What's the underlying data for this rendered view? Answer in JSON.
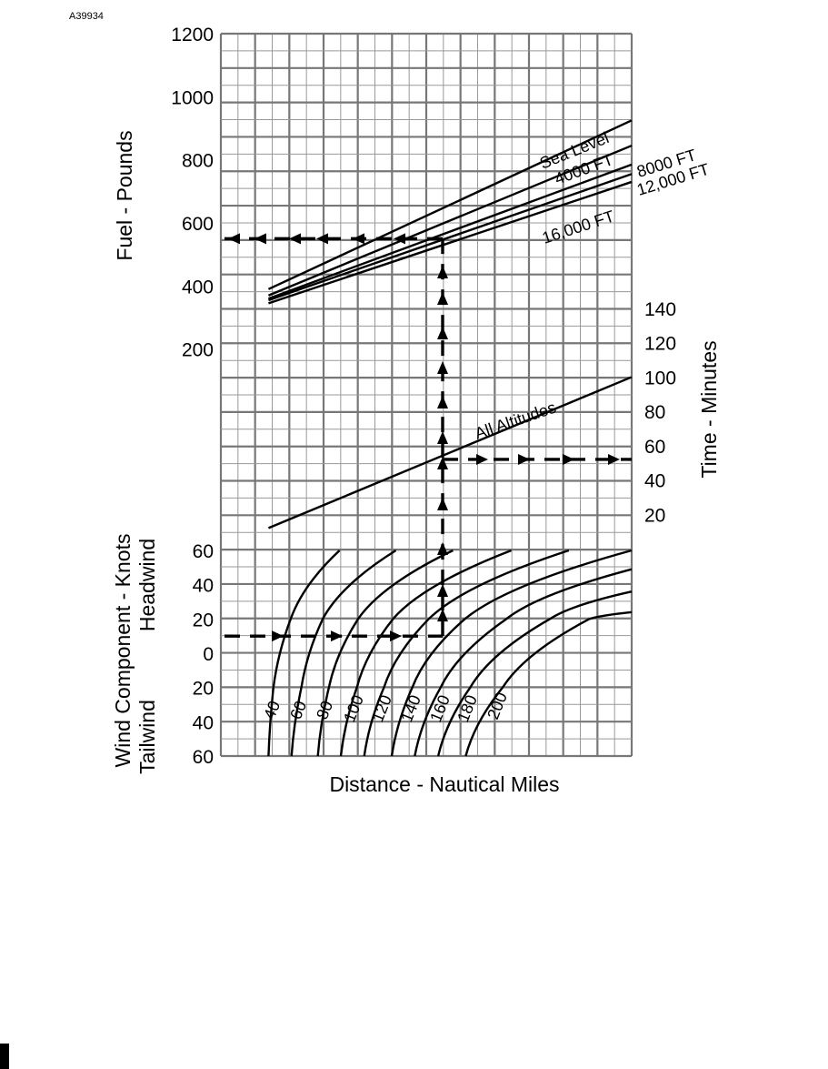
{
  "figure_id": "A39934",
  "chart_data": {
    "type": "line",
    "panels": [
      {
        "name": "fuel",
        "ylabel": "Fuel - Pounds",
        "yticks": [
          200,
          400,
          600,
          800,
          1000,
          1200
        ],
        "ylim": [
          0,
          1200
        ],
        "xlabel": "",
        "series": [
          {
            "name": "Sea Level",
            "x": [
              0,
              1
            ],
            "y": [
              390,
              925
            ]
          },
          {
            "name": "4000 FT",
            "x": [
              0,
              1
            ],
            "y": [
              370,
              845
            ]
          },
          {
            "name": "8000 FT",
            "x": [
              0,
              1
            ],
            "y": [
              360,
              785
            ]
          },
          {
            "name": "12,000 FT",
            "x": [
              0,
              1
            ],
            "y": [
              355,
              755
            ]
          },
          {
            "name": "16,000 FT",
            "x": [
              0,
              1
            ],
            "y": [
              345,
              730
            ]
          }
        ]
      },
      {
        "name": "time",
        "ylabel": "Time - Minutes",
        "yticks": [
          20,
          40,
          60,
          80,
          100,
          120,
          140
        ],
        "ylim": [
          0,
          140
        ],
        "series": [
          {
            "name": "All Altitudes",
            "x": [
              0,
              1
            ],
            "y": [
              12,
              100
            ]
          }
        ]
      },
      {
        "name": "wind",
        "ylabel": "Wind Component - Knots",
        "ylabel_upper": "Headwind",
        "ylabel_lower": "Tailwind",
        "yticks": [
          60,
          40,
          20,
          0,
          20,
          40,
          60
        ],
        "ylim": [
          -60,
          60
        ],
        "xlabel": "Distance - Nautical Miles",
        "series": [
          {
            "name": "40",
            "x": [
              0.116,
              0.128,
              0.17,
              0.289
            ],
            "y": [
              -60,
              -20,
              20,
              60
            ]
          },
          {
            "name": "60",
            "x": [
              0.172,
              0.196,
              0.248,
              0.426
            ],
            "y": [
              -60,
              -20,
              20,
              60
            ]
          },
          {
            "name": "80",
            "x": [
              0.236,
              0.263,
              0.334,
              0.565
            ],
            "y": [
              -60,
              -20,
              20,
              60
            ]
          },
          {
            "name": "100",
            "x": [
              0.292,
              0.331,
              0.419,
              0.707
            ],
            "y": [
              -60,
              -20,
              20,
              60
            ]
          },
          {
            "name": "120",
            "x": [
              0.349,
              0.397,
              0.506,
              0.847
            ],
            "y": [
              -60,
              -20,
              20,
              60
            ]
          },
          {
            "name": "140",
            "x": [
              0.416,
              0.466,
              0.594,
              1.0
            ],
            "y": [
              -60,
              -20,
              20,
              60
            ]
          },
          {
            "name": "160",
            "x": [
              0.472,
              0.535,
              0.695,
              1.0
            ],
            "y": [
              -60,
              -20,
              20,
              49
            ]
          },
          {
            "name": "180",
            "x": [
              0.529,
              0.607,
              0.801,
              1.0
            ],
            "y": [
              -60,
              -20,
              20,
              36
            ]
          },
          {
            "name": "200",
            "x": [
              0.596,
              0.686,
              0.897,
              1.0
            ],
            "y": [
              -60,
              -20,
              20,
              24
            ]
          }
        ]
      }
    ],
    "example": {
      "wind_headwind_knots": 10,
      "time_minutes": 52,
      "fuel_pounds": 550
    },
    "grid": true
  }
}
